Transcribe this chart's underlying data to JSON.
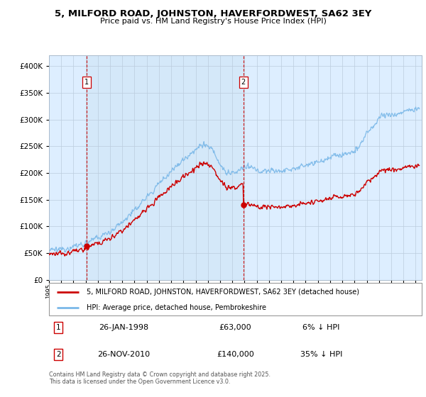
{
  "title": "5, MILFORD ROAD, JOHNSTON, HAVERFORDWEST, SA62 3EY",
  "subtitle": "Price paid vs. HM Land Registry's House Price Index (HPI)",
  "legend_line1": "5, MILFORD ROAD, JOHNSTON, HAVERFORDWEST, SA62 3EY (detached house)",
  "legend_line2": "HPI: Average price, detached house, Pembrokeshire",
  "annotation1_label": "1",
  "annotation1_date": "26-JAN-1998",
  "annotation1_price": "£63,000",
  "annotation1_hpi": "6% ↓ HPI",
  "annotation2_label": "2",
  "annotation2_date": "26-NOV-2010",
  "annotation2_price": "£140,000",
  "annotation2_hpi": "35% ↓ HPI",
  "footer": "Contains HM Land Registry data © Crown copyright and database right 2025.\nThis data is licensed under the Open Government Licence v3.0.",
  "sale1_year": 1998.07,
  "sale1_price": 63000,
  "sale2_year": 2010.91,
  "sale2_price": 140000,
  "hpi_color": "#7ab8e8",
  "price_color": "#cc0000",
  "vline_color": "#cc0000",
  "bg_fill_color": "#ddeeff",
  "background_color": "#ffffff",
  "ylim": [
    0,
    420000
  ],
  "xlim_start": 1995.0,
  "xlim_end": 2025.5,
  "hpi_anchors_y": [
    1995.0,
    1996.0,
    1997.0,
    1998.0,
    1999.0,
    2000.0,
    2001.0,
    2002.0,
    2003.0,
    2004.0,
    2005.0,
    2006.0,
    2007.0,
    2007.8,
    2008.5,
    2009.0,
    2009.5,
    2010.0,
    2010.5,
    2011.0,
    2011.5,
    2012.0,
    2013.0,
    2014.0,
    2015.0,
    2016.0,
    2017.0,
    2018.0,
    2019.0,
    2020.0,
    2020.5,
    2021.0,
    2021.5,
    2022.0,
    2022.5,
    2023.0,
    2023.5,
    2024.0,
    2024.5,
    2025.3
  ],
  "hpi_anchors_v": [
    55000,
    57000,
    62000,
    69000,
    78000,
    91000,
    108000,
    130000,
    155000,
    180000,
    205000,
    225000,
    245000,
    255000,
    240000,
    215000,
    200000,
    200000,
    205000,
    210000,
    210000,
    205000,
    205000,
    205000,
    208000,
    215000,
    220000,
    228000,
    235000,
    240000,
    255000,
    275000,
    285000,
    305000,
    310000,
    308000,
    310000,
    315000,
    318000,
    320000
  ]
}
